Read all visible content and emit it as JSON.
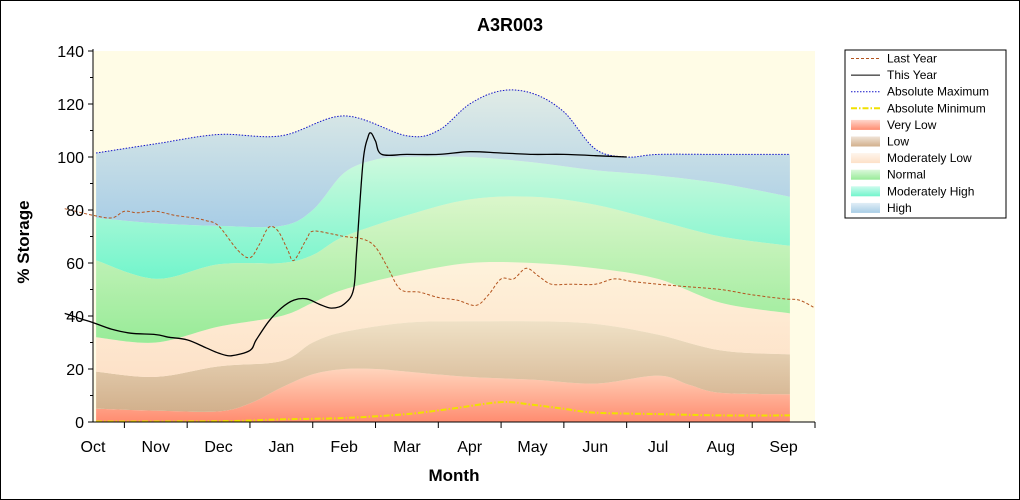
{
  "chart_data": {
    "type": "area",
    "title": "A3R003",
    "xlabel": "Month",
    "ylabel": "% Storage",
    "ylim": [
      0,
      140
    ],
    "yticks": [
      0,
      20,
      40,
      60,
      80,
      100,
      120,
      140
    ],
    "categories": [
      "Oct",
      "Nov",
      "Dec",
      "Jan",
      "Feb",
      "Mar",
      "Apr",
      "May",
      "Jun",
      "Jul",
      "Aug",
      "Sep"
    ],
    "x_domain": [
      0,
      11.5
    ],
    "legend_position": "right",
    "grid": false,
    "plot_background": "#fffce6",
    "bands": [
      {
        "name": "Very Low",
        "color": "#ff8c70",
        "lower": [
          [
            0.05,
            0
          ],
          [
            11.1,
            0
          ]
        ],
        "upper": [
          [
            0.05,
            5
          ],
          [
            1,
            4.3
          ],
          [
            2,
            4
          ],
          [
            2.5,
            7
          ],
          [
            3,
            13
          ],
          [
            3.5,
            18
          ],
          [
            4,
            20
          ],
          [
            4.5,
            20
          ],
          [
            5,
            19
          ],
          [
            6,
            17
          ],
          [
            7,
            16
          ],
          [
            8,
            14.5
          ],
          [
            9,
            17.5
          ],
          [
            9.5,
            14
          ],
          [
            10,
            11
          ],
          [
            11.1,
            10.5
          ]
        ]
      },
      {
        "name": "Low",
        "color": "#d2b08c",
        "lower": "Very Low",
        "upper": [
          [
            0.05,
            19
          ],
          [
            1,
            17
          ],
          [
            2,
            21
          ],
          [
            3,
            23
          ],
          [
            3.5,
            30
          ],
          [
            4,
            34
          ],
          [
            5,
            37.5
          ],
          [
            6,
            38
          ],
          [
            7,
            38
          ],
          [
            8,
            37
          ],
          [
            9,
            33
          ],
          [
            10,
            27
          ],
          [
            11.1,
            25.5
          ]
        ]
      },
      {
        "name": "Moderately Low",
        "color": "#fde1c8",
        "lower": "Low",
        "upper": [
          [
            0.05,
            32
          ],
          [
            1,
            30
          ],
          [
            2,
            36
          ],
          [
            3,
            40
          ],
          [
            3.5,
            45
          ],
          [
            4,
            50
          ],
          [
            5,
            56
          ],
          [
            6,
            60
          ],
          [
            7,
            60
          ],
          [
            8,
            58
          ],
          [
            9,
            54
          ],
          [
            10,
            45
          ],
          [
            11.1,
            41
          ]
        ]
      },
      {
        "name": "Normal",
        "color": "#98eb98",
        "lower": "Moderately Low",
        "upper": [
          [
            0.05,
            61
          ],
          [
            1,
            54
          ],
          [
            2,
            59.5
          ],
          [
            3,
            60
          ],
          [
            3.5,
            63
          ],
          [
            4,
            70
          ],
          [
            5,
            78
          ],
          [
            6,
            84
          ],
          [
            7,
            85
          ],
          [
            8,
            82
          ],
          [
            9,
            76
          ],
          [
            10,
            70
          ],
          [
            11.1,
            66.5
          ]
        ]
      },
      {
        "name": "Moderately High",
        "color": "#72f5cc",
        "lower": "Normal",
        "upper": [
          [
            0.05,
            77
          ],
          [
            1,
            75
          ],
          [
            2,
            74
          ],
          [
            3,
            74
          ],
          [
            3.5,
            80
          ],
          [
            4,
            94
          ],
          [
            4.5,
            99
          ],
          [
            5,
            100
          ],
          [
            6,
            100
          ],
          [
            7,
            98
          ],
          [
            8,
            95
          ],
          [
            9,
            93
          ],
          [
            10,
            90
          ],
          [
            11.1,
            85
          ]
        ]
      },
      {
        "name": "High",
        "color": "#a8cde6",
        "lower": "Moderately High",
        "upper": [
          [
            0.05,
            101.5
          ],
          [
            1,
            105
          ],
          [
            2,
            108.5
          ],
          [
            3,
            108
          ],
          [
            4,
            115.5
          ],
          [
            5,
            108
          ],
          [
            5.5,
            110
          ],
          [
            6,
            120
          ],
          [
            6.5,
            125
          ],
          [
            7,
            124
          ],
          [
            7.5,
            117
          ],
          [
            8,
            103
          ],
          [
            8.5,
            100
          ],
          [
            9,
            101
          ],
          [
            10,
            101
          ],
          [
            11.1,
            101
          ]
        ]
      }
    ],
    "series": [
      {
        "name": "Last Year",
        "style": "dashed",
        "color": "#b4541e",
        "points": [
          [
            -0.45,
            80.5
          ],
          [
            0,
            78
          ],
          [
            0.3,
            77
          ],
          [
            0.5,
            79.5
          ],
          [
            0.7,
            79
          ],
          [
            1,
            79.5
          ],
          [
            1.3,
            78
          ],
          [
            1.6,
            77
          ],
          [
            1.8,
            76
          ],
          [
            2,
            74
          ],
          [
            2.3,
            65
          ],
          [
            2.5,
            62
          ],
          [
            2.65,
            67
          ],
          [
            2.8,
            73.5
          ],
          [
            2.95,
            72
          ],
          [
            3.1,
            65
          ],
          [
            3.2,
            61
          ],
          [
            3.4,
            69
          ],
          [
            3.5,
            72
          ],
          [
            3.8,
            71
          ],
          [
            4,
            70
          ],
          [
            4.3,
            69
          ],
          [
            4.5,
            66
          ],
          [
            4.7,
            58
          ],
          [
            4.9,
            50
          ],
          [
            5.2,
            49
          ],
          [
            5.5,
            47
          ],
          [
            5.8,
            46
          ],
          [
            6.1,
            44
          ],
          [
            6.3,
            48
          ],
          [
            6.5,
            54
          ],
          [
            6.7,
            54
          ],
          [
            6.9,
            58
          ],
          [
            7.1,
            55
          ],
          [
            7.3,
            52
          ],
          [
            7.6,
            52
          ],
          [
            8,
            52
          ],
          [
            8.3,
            54
          ],
          [
            8.6,
            53
          ],
          [
            9,
            52
          ],
          [
            9.5,
            51
          ],
          [
            10,
            50
          ],
          [
            10.5,
            48
          ],
          [
            11,
            46.5
          ],
          [
            11.25,
            46
          ],
          [
            11.5,
            43
          ]
        ]
      },
      {
        "name": "This Year",
        "style": "solid",
        "color": "#000000",
        "points": [
          [
            -0.45,
            41
          ],
          [
            -0.2,
            39
          ],
          [
            0,
            37.5
          ],
          [
            0.3,
            35
          ],
          [
            0.6,
            33.5
          ],
          [
            1,
            33
          ],
          [
            1.2,
            32
          ],
          [
            1.5,
            31
          ],
          [
            1.8,
            28
          ],
          [
            2,
            26
          ],
          [
            2.2,
            25
          ],
          [
            2.5,
            27
          ],
          [
            2.6,
            31
          ],
          [
            2.8,
            38
          ],
          [
            3,
            43
          ],
          [
            3.2,
            46
          ],
          [
            3.4,
            46.5
          ],
          [
            3.6,
            44.5
          ],
          [
            3.8,
            43
          ],
          [
            4,
            44.5
          ],
          [
            4.15,
            50
          ],
          [
            4.2,
            65
          ],
          [
            4.3,
            98
          ],
          [
            4.38,
            107.5
          ],
          [
            4.43,
            109
          ],
          [
            4.5,
            106
          ],
          [
            4.6,
            101
          ],
          [
            5,
            101
          ],
          [
            5.5,
            101
          ],
          [
            6,
            102
          ],
          [
            6.5,
            101.5
          ],
          [
            7,
            101
          ],
          [
            7.5,
            101
          ],
          [
            8,
            100.5
          ],
          [
            8.5,
            100
          ]
        ]
      },
      {
        "name": "Absolute Maximum",
        "style": "dotted",
        "color": "#1414c8",
        "points": [
          [
            0.05,
            101.5
          ],
          [
            1,
            105
          ],
          [
            2,
            108.5
          ],
          [
            3,
            108
          ],
          [
            4,
            115.5
          ],
          [
            5,
            108
          ],
          [
            5.5,
            110
          ],
          [
            6,
            120
          ],
          [
            6.5,
            125
          ],
          [
            7,
            124
          ],
          [
            7.5,
            117
          ],
          [
            8,
            103
          ],
          [
            8.5,
            100
          ],
          [
            9,
            101
          ],
          [
            10,
            101
          ],
          [
            11.1,
            101
          ]
        ]
      },
      {
        "name": "Absolute Minimum",
        "style": "dashdot",
        "color": "#f0e000",
        "points": [
          [
            0.05,
            0.2
          ],
          [
            2,
            0.3
          ],
          [
            3,
            1
          ],
          [
            4,
            1.5
          ],
          [
            5,
            3
          ],
          [
            5.7,
            5
          ],
          [
            6.5,
            7.5
          ],
          [
            7,
            6.5
          ],
          [
            7.5,
            5
          ],
          [
            8,
            3.5
          ],
          [
            9,
            3
          ],
          [
            10,
            2.5
          ],
          [
            11.1,
            2.5
          ]
        ]
      }
    ]
  },
  "legend": [
    {
      "label": "Last Year",
      "kind": "line",
      "style": "dashed",
      "color": "#b4541e"
    },
    {
      "label": "This Year",
      "kind": "line",
      "style": "solid",
      "color": "#000000"
    },
    {
      "label": "Absolute Maximum",
      "kind": "line",
      "style": "dotted",
      "color": "#1414c8"
    },
    {
      "label": "Absolute Minimum",
      "kind": "line",
      "style": "dashdot",
      "color": "#f0e000"
    },
    {
      "label": "Very Low",
      "kind": "box",
      "color": "#ff8c70"
    },
    {
      "label": "Low",
      "kind": "box",
      "color": "#d2b08c"
    },
    {
      "label": "Moderately Low",
      "kind": "box",
      "color": "#fde1c8"
    },
    {
      "label": "Normal",
      "kind": "box",
      "color": "#98eb98"
    },
    {
      "label": "Moderately High",
      "kind": "box",
      "color": "#72f5cc"
    },
    {
      "label": "High",
      "kind": "box",
      "color": "#a8cde6"
    }
  ]
}
